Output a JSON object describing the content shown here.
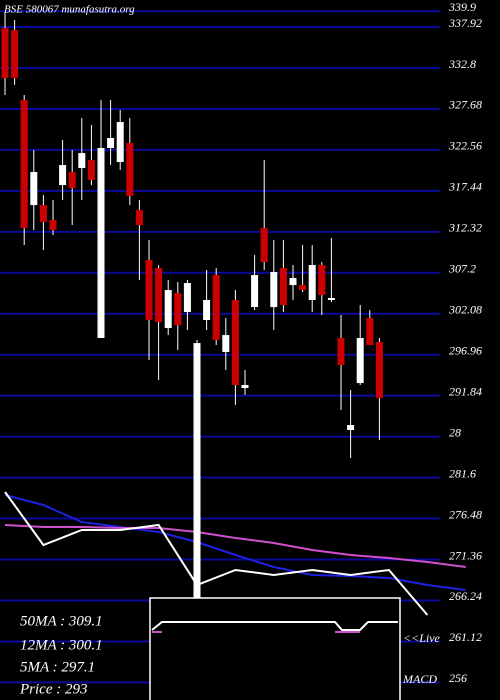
{
  "chart_data": {
    "type": "candlestick",
    "title": "BSE 580067 munafasutra.org",
    "ylim": [
      253.8,
      341.3
    ],
    "yticks": [
      339.9,
      337.92,
      332.8,
      327.68,
      322.56,
      317.44,
      312.32,
      307.2,
      302.08,
      296.96,
      291.84,
      {
        "value": 286.72,
        "label": "28"
      },
      281.6,
      276.48,
      271.36,
      266.24,
      261.12,
      256
    ],
    "grid": true,
    "grid_color": "#0a0a9a",
    "up_color": "#ffffff",
    "down_color": "#cc0000",
    "open": [
      337.8,
      337.55,
      328.8,
      315.67,
      315.67,
      313.8,
      318.17,
      319.8,
      320.3,
      321.3,
      299.05,
      322.8,
      321.05,
      323.42,
      315.05,
      308.8,
      307.8,
      300.3,
      304.67,
      302.3,
      266.3,
      301.3,
      306.92,
      297.3,
      303.8,
      292.8,
      302.92,
      312.8,
      302.92,
      307.8,
      305.67,
      305.67,
      303.8,
      308.17,
      303.8,
      299.05,
      287.55,
      293.42,
      301.55,
      298.55
    ],
    "high": [
      339.8,
      338.8,
      329.42,
      322.55,
      316.92,
      316.3,
      323.8,
      322.55,
      326.55,
      325.67,
      328.8,
      328.8,
      327.55,
      326.55,
      316.3,
      311.3,
      308.17,
      306.3,
      306.05,
      306.3,
      298.8,
      307.55,
      307.8,
      301.55,
      305.05,
      295.05,
      309.42,
      321.3,
      311.3,
      311.3,
      308.17,
      310.67,
      310.67,
      308.55,
      311.55,
      301.92,
      292.55,
      303.17,
      302.55,
      299.05
    ],
    "low": [
      329.42,
      330.67,
      310.67,
      312.55,
      310.05,
      311.92,
      316.3,
      313.17,
      316.3,
      318.17,
      299.05,
      320.67,
      320.05,
      315.67,
      306.3,
      296.3,
      293.8,
      299.42,
      297.55,
      300.05,
      266.3,
      300.05,
      298.17,
      295.05,
      290.67,
      291.92,
      302.55,
      307.55,
      300.05,
      302.3,
      303.8,
      304.8,
      302.3,
      301.92,
      303.55,
      290.05,
      284.05,
      293.17,
      298.17,
      286.3
    ],
    "close": [
      331.55,
      331.55,
      312.8,
      319.8,
      313.55,
      312.55,
      320.67,
      317.8,
      322.17,
      318.8,
      322.8,
      324.05,
      326.05,
      316.8,
      313.17,
      301.3,
      301.05,
      305.05,
      300.67,
      305.92,
      298.42,
      303.8,
      298.8,
      299.42,
      293.17,
      293.17,
      306.92,
      308.55,
      307.3,
      303.17,
      306.55,
      305.05,
      308.17,
      304.42,
      304.05,
      295.67,
      288.17,
      299.05,
      298.17,
      291.55
    ],
    "overlay_x": [
      0,
      4,
      8,
      12,
      16,
      20,
      24,
      28,
      32,
      36,
      40,
      44,
      48
    ],
    "overlays": [
      {
        "color": "#2020e0",
        "values": [
          279.42,
          278.17,
          276.05,
          275.42,
          274.8,
          273.55,
          271.92,
          270.42,
          269.42,
          269.3,
          269.05,
          268.17,
          267.55
        ]
      },
      {
        "color": "#d050d0",
        "values": [
          275.67,
          275.42,
          275.42,
          275.3,
          275.3,
          274.8,
          274.05,
          273.42,
          272.55,
          271.92,
          271.55,
          271.05,
          270.42
        ]
      },
      {
        "color": "#ffffff",
        "values": [
          279.8,
          273.17,
          275.05,
          275.05,
          275.67,
          268.17,
          270.05,
          269.42,
          270.05,
          269.42,
          270.05,
          264.42,
          null
        ]
      }
    ],
    "legend": [
      "50MA : 309.1",
      "12MA : 300.1",
      "5MA : 297.1",
      "Price   : 293"
    ],
    "macd_label": [
      "<<Live",
      "MACD"
    ]
  }
}
